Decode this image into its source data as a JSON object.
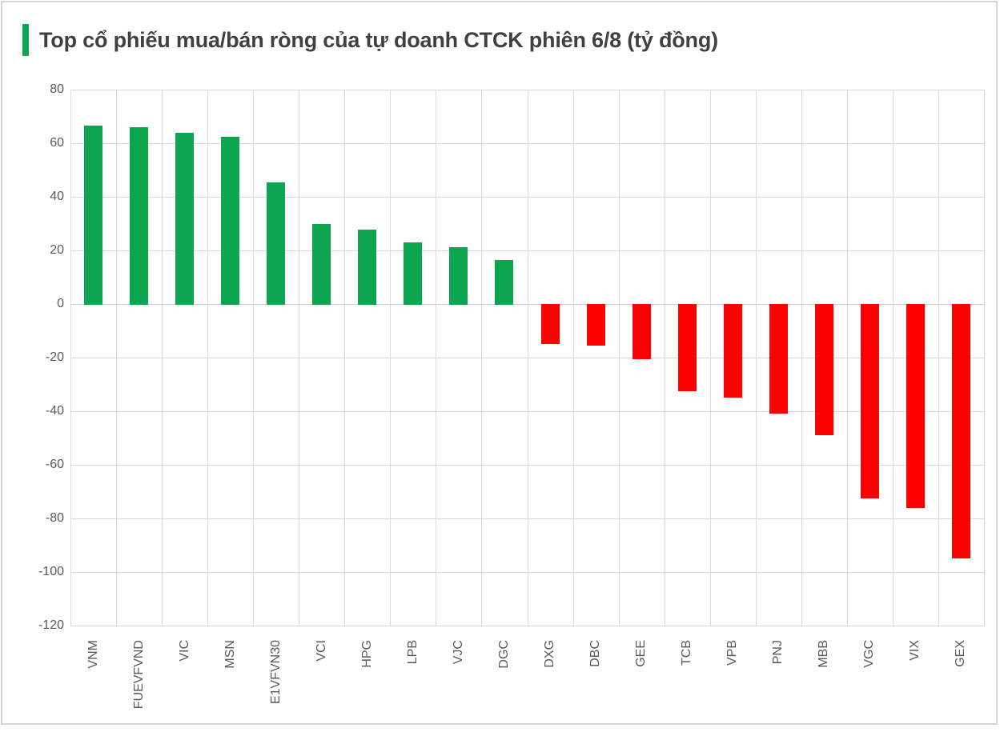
{
  "page": {
    "background": "#ffffff",
    "border_color": "#d4d4d4"
  },
  "header": {
    "title": "Top cổ phiếu mua/bán ròng của tự doanh CTCK phiên 6/8 (tỷ đồng)",
    "accent_color": "#0ea551",
    "title_color": "#404040"
  },
  "chart_data": {
    "type": "bar",
    "title": "Top cổ phiếu mua/bán ròng của tự doanh CTCK phiên 6/8 (tỷ đồng)",
    "unit": "tỷ đồng",
    "categories": [
      "VNM",
      "FUEVFVND",
      "VIC",
      "MSN",
      "E1VFVN30",
      "VCI",
      "HPG",
      "LPB",
      "VJC",
      "DGC",
      "DXG",
      "DBC",
      "GEE",
      "TCB",
      "VPB",
      "PNJ",
      "MBB",
      "VGC",
      "VIX",
      "GEX"
    ],
    "values": [
      66.5,
      66.0,
      64.0,
      62.5,
      45.5,
      29.8,
      27.8,
      23.0,
      21.2,
      16.4,
      -15.0,
      -15.5,
      -20.5,
      -32.5,
      -35.0,
      -41.0,
      -49.0,
      -72.5,
      -76.0,
      -95.0
    ],
    "ylim": [
      -120,
      80
    ],
    "ytick_step": 20,
    "yticks": [
      80,
      60,
      40,
      20,
      0,
      -20,
      -40,
      -60,
      -80,
      -100,
      -120
    ],
    "grid": true,
    "legend": "none",
    "xlabel": "",
    "ylabel": "",
    "bar_colors": {
      "positive": "#0ea551",
      "negative": "#ff0000"
    },
    "gridline_color": "#d9d9d9",
    "zero_line_color": "#cfcfcf",
    "tick_label_color": "#595959"
  }
}
